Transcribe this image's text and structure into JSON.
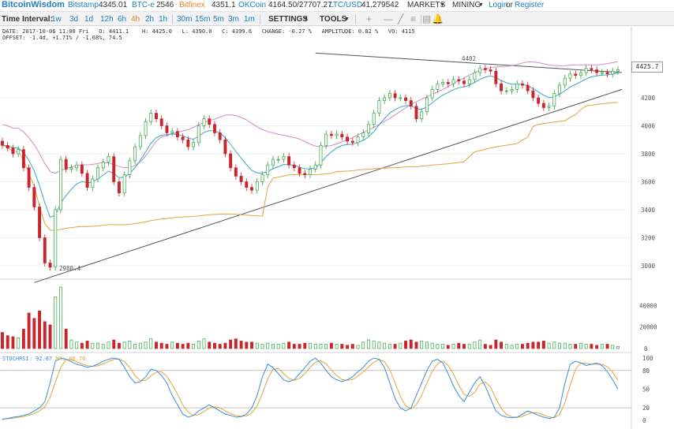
{
  "topbar": {
    "logo": "BitcoinWisdom",
    "tickers": [
      {
        "name": "Bitstamp",
        "value": "4345.01"
      },
      {
        "name": "BTC-e",
        "value": "2546"
      },
      {
        "name": "Bitfinex",
        "value": "4351.1"
      },
      {
        "name": "OKCoin",
        "value": "4164.50/27707.27"
      },
      {
        "name": "LTC/USD",
        "value": "41.279542"
      }
    ],
    "markets_label": "MARKETS",
    "mining_label": "MINING",
    "login_label": "Login",
    "or_label": "or",
    "register_label": "Register"
  },
  "toolbar": {
    "time_interval_label": "Time Interval:",
    "intervals": [
      "1w",
      "3d",
      "1d",
      "12h",
      "6h",
      "4h",
      "2h",
      "1h",
      "30m",
      "15m",
      "5m",
      "3m",
      "1m"
    ],
    "active_interval": "4h",
    "settings_label": "SETTINGS",
    "tools_label": "TOOLS"
  },
  "info": {
    "line1": "DATE: 2017-10-06 11:00 Fri   O: 4411.1    H: 4425.0   L: 4390.0   C: 4399.6   CHANGE: -0.27 %   AMPLITUDE: 0.82 %   VO: 4115",
    "line2": "OFFSET: -1.4d, +1.71% / -1.68%, 74.5"
  },
  "price_box": "4425.7",
  "low_label": "2980.4",
  "high_label": "4402",
  "stoch": {
    "label": "STOCHRSI: 92.87",
    "ma_label": "MA: 88.76"
  },
  "colors": {
    "up": "#2da63b",
    "down": "#c9252b",
    "ema_blue": "#39a6c9",
    "ema_orange": "#e2a53c",
    "ema_pink": "#d08cc8",
    "k_line": "#3a8fd9",
    "d_line": "#e2a53c"
  },
  "chart_data": {
    "type": "line",
    "price_axis_ticks": [
      3000,
      3200,
      3400,
      3600,
      3800,
      4000,
      4200
    ],
    "volume_axis_ticks": [
      0,
      20000,
      40000
    ],
    "stoch_axis_ticks": [
      0,
      20,
      50,
      80,
      100
    ],
    "close": [
      3860,
      3840,
      3800,
      3830,
      3700,
      3560,
      3420,
      3200,
      3020,
      2990,
      3400,
      3760,
      3690,
      3700,
      3720,
      3660,
      3560,
      3620,
      3700,
      3740,
      3780,
      3600,
      3520,
      3650,
      3750,
      3850,
      3930,
      4030,
      4090,
      4050,
      4000,
      3950,
      3960,
      3920,
      3900,
      3850,
      3880,
      4000,
      4050,
      4010,
      3950,
      3900,
      3800,
      3700,
      3640,
      3600,
      3560,
      3540,
      3600,
      3650,
      3720,
      3760,
      3760,
      3780,
      3720,
      3700,
      3660,
      3650,
      3690,
      3720,
      3860,
      3940,
      3930,
      3940,
      3920,
      3890,
      3880,
      3920,
      3950,
      4010,
      4090,
      4180,
      4200,
      4230,
      4200,
      4200,
      4180,
      4140,
      4050,
      4100,
      4200,
      4260,
      4300,
      4310,
      4300,
      4330,
      4320,
      4300,
      4330,
      4380,
      4410,
      4400,
      4390,
      4300,
      4250,
      4250,
      4260,
      4300,
      4290,
      4250,
      4200,
      4160,
      4130,
      4140,
      4230,
      4290,
      4340,
      4370,
      4360,
      4380,
      4410,
      4400,
      4380,
      4380,
      4370,
      4390,
      4399.6
    ],
    "volume": [
      15000,
      12000,
      11000,
      10000,
      18000,
      33000,
      28000,
      35000,
      25000,
      22000,
      48000,
      57000,
      18000,
      8000,
      6000,
      5000,
      7000,
      5000,
      5000,
      4000,
      6000,
      8000,
      5000,
      6000,
      7000,
      4000,
      5000,
      6000,
      9000,
      6000,
      5000,
      4000,
      6000,
      5000,
      4000,
      5000,
      4000,
      7000,
      9000,
      6000,
      5000,
      4000,
      5000,
      8000,
      9000,
      7000,
      6000,
      6000,
      5000,
      4000,
      5000,
      4000,
      4000,
      5000,
      6000,
      4000,
      4000,
      5000,
      5000,
      4000,
      4000,
      4000,
      5000,
      4000,
      4000,
      3000,
      4000,
      3000,
      6000,
      8000,
      7000,
      6000,
      5000,
      4000,
      4000,
      5000,
      7000,
      8000,
      6000,
      7000,
      6000,
      5000,
      4000,
      4000,
      3000,
      4000,
      5000,
      4000,
      4000,
      6000,
      8000,
      4000,
      3000,
      8000,
      6000,
      4000,
      3000,
      4000,
      4000,
      5000,
      6000,
      6000,
      7000,
      5000,
      6000,
      5000,
      5000,
      4000,
      4000,
      5000,
      4000,
      4000,
      3000,
      4000,
      4000,
      3000,
      2000
    ],
    "stoch_k": [
      2,
      3,
      5,
      6,
      8,
      10,
      15,
      20,
      30,
      60,
      95,
      100,
      98,
      94,
      90,
      88,
      85,
      87,
      90,
      95,
      98,
      100,
      98,
      85,
      70,
      60,
      62,
      70,
      82,
      80,
      72,
      60,
      40,
      25,
      10,
      5,
      8,
      15,
      20,
      25,
      20,
      15,
      10,
      8,
      5,
      6,
      10,
      20,
      40,
      70,
      90,
      85,
      75,
      65,
      62,
      65,
      75,
      85,
      95,
      100,
      92,
      80,
      70,
      65,
      62,
      65,
      70,
      78,
      85,
      95,
      100,
      98,
      85,
      60,
      35,
      20,
      15,
      20,
      40,
      60,
      80,
      95,
      98,
      92,
      75,
      55,
      40,
      30,
      45,
      60,
      70,
      55,
      35,
      15,
      8,
      5,
      4,
      5,
      10,
      15,
      12,
      8,
      5,
      3,
      5,
      20,
      60,
      90,
      95,
      92,
      88,
      90,
      92,
      88,
      78,
      65,
      50
    ]
  }
}
